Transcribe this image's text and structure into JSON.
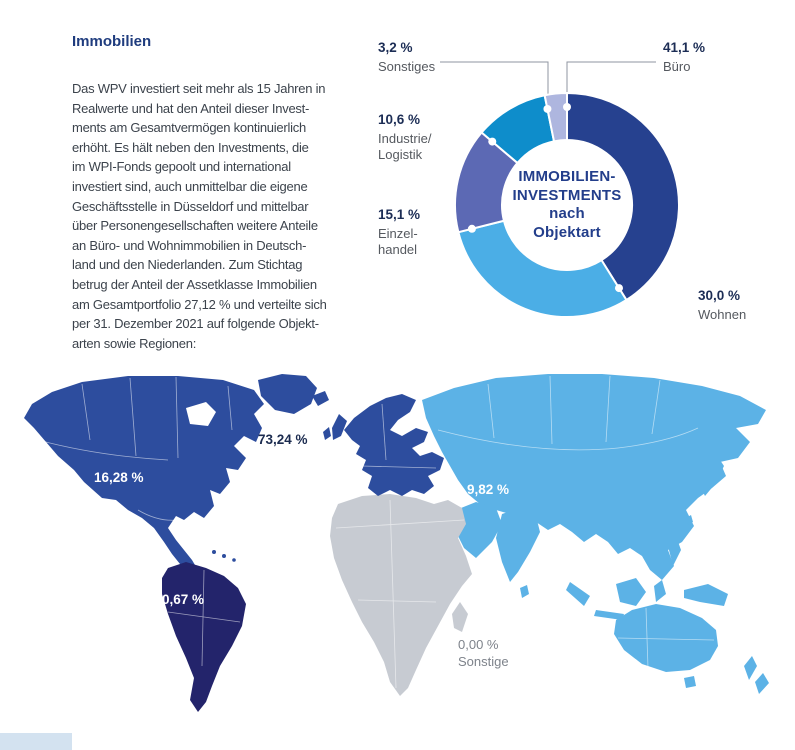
{
  "page": {
    "heading": "Immobilien",
    "intro_text": "Das WPV investiert seit mehr als 15 Jahren in\nRealwerte und hat den Anteil dieser Invest-\nments am Gesamtvermögen kontinuierlich\nerhöht. Es hält neben den Investments, die\nim WPI-Fonds gepoolt und international\ninvestiert sind, auch unmittelbar die eigene\nGeschäftsstelle in Düsseldorf und mittelbar\nüber Personengesellschaften weitere Anteile\nan Büro- und Wohnimmobilien in Deutsch-\nland und den Niederlanden. Zum Stichtag\nbetrug der Anteil der Assetklasse Immobilien\nam Gesamtportfolio 27,12 % und verteilte sich\nper 31. Dezember 2021 auf folgende Objekt-\narten sowie Regionen:"
  },
  "chart_data": [
    {
      "type": "pie",
      "donut": true,
      "title": "IMMOBILIEN-INVESTMENTS nach Objektart",
      "center_lines": [
        "IMMOBILIEN-",
        "INVESTMENTS",
        "nach",
        "Objektart"
      ],
      "start_angle_deg": 0,
      "direction": "clockwise",
      "unit": "%",
      "segments": [
        {
          "label": "Büro",
          "value": 41.1,
          "display": "41,1 %",
          "color": "#26418F"
        },
        {
          "label": "Wohnen",
          "value": 30.0,
          "display": "30,0 %",
          "color": "#4BAEE6"
        },
        {
          "label": "Einzelhandel",
          "value": 15.1,
          "display": "15,1 %",
          "color": "#5C69B4",
          "label_lines": [
            "Einzel-",
            "handel"
          ]
        },
        {
          "label": "Industrie/Logistik",
          "value": 10.6,
          "display": "10,6 %",
          "color": "#0E8DCB",
          "label_lines": [
            "Industrie/",
            "Logistik"
          ]
        },
        {
          "label": "Sonstiges",
          "value": 3.2,
          "display": "3,2 %",
          "color": "#AEB6DF"
        }
      ]
    },
    {
      "type": "map",
      "unit": "%",
      "series": [
        {
          "id": "north-america",
          "display": "16,28 %",
          "value": 16.28
        },
        {
          "id": "europe",
          "display": "73,24 %",
          "value": 73.24
        },
        {
          "id": "asia",
          "display": "9,82 %",
          "value": 9.82
        },
        {
          "id": "south-america",
          "display": "0,67 %",
          "value": 0.67
        },
        {
          "id": "other",
          "display": "0,00 %",
          "label": "Sonstige",
          "value": 0.0
        }
      ]
    }
  ],
  "map": {
    "regions": {
      "north-america": {
        "color": "#2D4D9E"
      },
      "greenland": {
        "color": "#2D4D9E"
      },
      "europe": {
        "color": "#2D4D9E"
      },
      "south-america": {
        "color": "#23246B"
      },
      "africa": {
        "color": "#C7CBD2"
      },
      "asia": {
        "color": "#5CB2E6"
      },
      "oceania": {
        "color": "#5CB2E6"
      }
    },
    "callout_color": "#8F95A0"
  }
}
